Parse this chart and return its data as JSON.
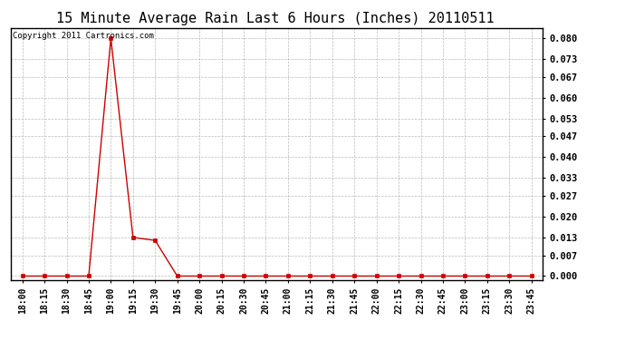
{
  "title": "15 Minute Average Rain Last 6 Hours (Inches) 20110511",
  "copyright_text": "Copyright 2011 Cartronics.com",
  "line_color": "#cc0000",
  "background_color": "#ffffff",
  "grid_color": "#bbbbbb",
  "x_labels": [
    "18:00",
    "18:15",
    "18:30",
    "18:45",
    "19:00",
    "19:15",
    "19:30",
    "19:45",
    "20:00",
    "20:15",
    "20:30",
    "20:45",
    "21:00",
    "21:15",
    "21:30",
    "21:45",
    "22:00",
    "22:15",
    "22:30",
    "22:45",
    "23:00",
    "23:15",
    "23:30",
    "23:45"
  ],
  "y_ticks": [
    0.0,
    0.007,
    0.013,
    0.02,
    0.027,
    0.033,
    0.04,
    0.047,
    0.053,
    0.06,
    0.067,
    0.073,
    0.08
  ],
  "y_tick_labels": [
    "0.000",
    "0.007",
    "0.013",
    "0.020",
    "0.027",
    "0.033",
    "0.040",
    "0.047",
    "0.053",
    "0.060",
    "0.067",
    "0.073",
    "0.080"
  ],
  "ylim": [
    -0.0015,
    0.0835
  ],
  "data_values": [
    0.0,
    0.0,
    0.0,
    0.0,
    0.08,
    0.013,
    0.012,
    0.0,
    0.0,
    0.0,
    0.0,
    0.0,
    0.0,
    0.0,
    0.0,
    0.0,
    0.0,
    0.0,
    0.0,
    0.0,
    0.0,
    0.0,
    0.0,
    0.0
  ],
  "title_fontsize": 11,
  "tick_fontsize": 7,
  "ytick_fontsize": 7.5,
  "copyright_fontsize": 6.5
}
